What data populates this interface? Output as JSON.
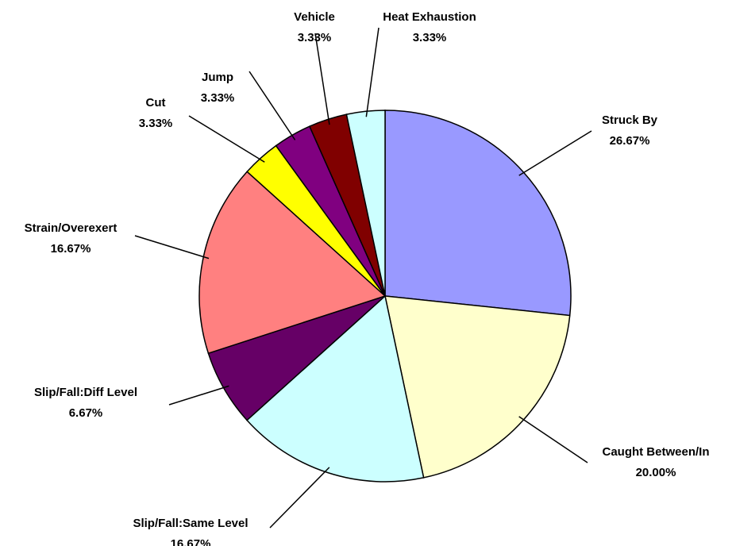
{
  "chart_data": {
    "type": "pie",
    "categories": [
      "Struck By",
      "Caught Between/In",
      "Slip/Fall:Same Level",
      "Slip/Fall:Diff Level",
      "Strain/Overexert",
      "Cut",
      "Jump",
      "Vehicle",
      "Heat Exhaustion"
    ],
    "values": [
      26.67,
      20.0,
      16.67,
      6.67,
      16.67,
      3.33,
      3.33,
      3.33,
      3.33
    ],
    "value_labels": [
      "26.67%",
      "20.00%",
      "16.67%",
      "6.67%",
      "16.67%",
      "3.33%",
      "3.33%",
      "3.33%",
      "3.33%"
    ],
    "colors": [
      "#9999ff",
      "#ffffcc",
      "#ccffff",
      "#660066",
      "#ff8080",
      "#ffff00",
      "#800080",
      "#800000",
      "#ccffff"
    ]
  }
}
